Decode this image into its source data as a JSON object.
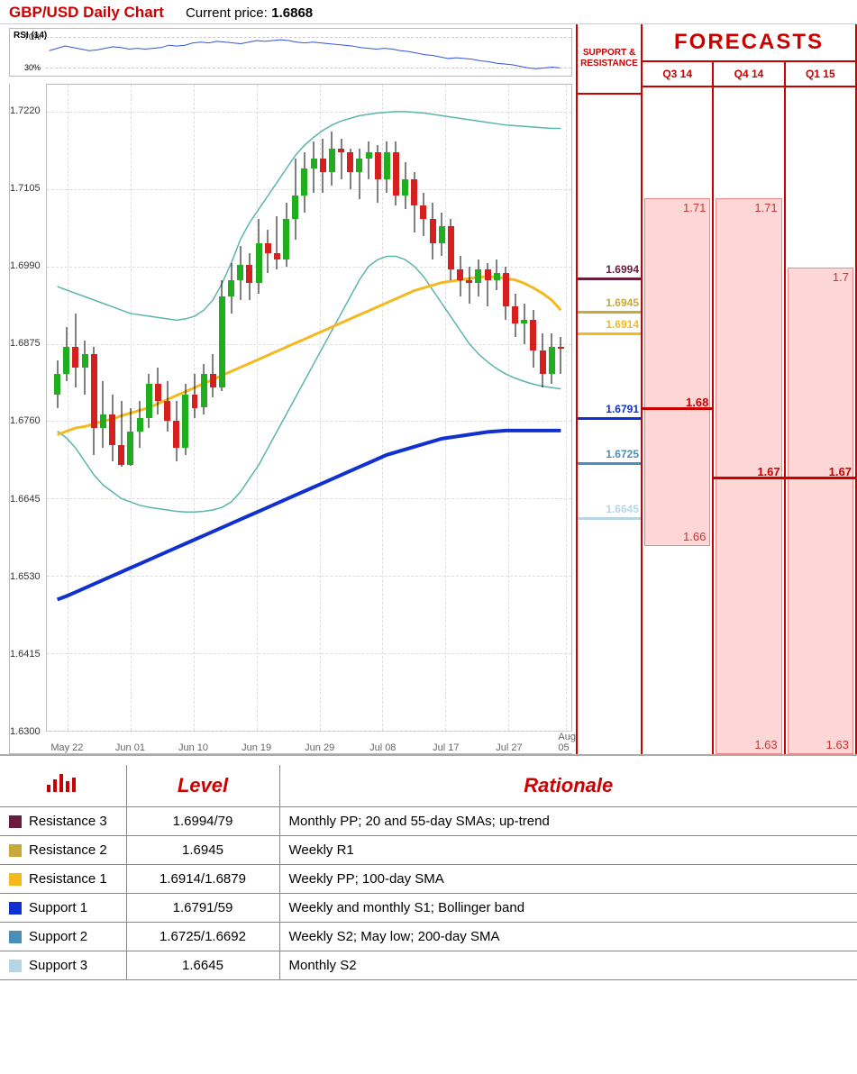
{
  "header": {
    "title": "GBP/USD Daily Chart",
    "price_label": "Current price:",
    "price_value": "1.6868"
  },
  "rsi": {
    "label": "RSI (14)",
    "bands": [
      70,
      30
    ],
    "ymin": 20,
    "ymax": 80,
    "line_color": "#3355dd",
    "values": [
      52,
      55,
      58,
      56,
      54,
      52,
      53,
      55,
      57,
      56,
      54,
      55,
      54,
      55,
      56,
      59,
      58,
      59,
      62,
      63,
      62,
      64,
      63,
      62,
      61,
      63,
      65,
      64,
      65,
      66,
      65,
      63,
      62,
      63,
      62,
      61,
      60,
      59,
      58,
      56,
      55,
      54,
      55,
      54,
      52,
      51,
      49,
      47,
      46,
      44,
      42,
      43,
      42,
      41,
      39,
      38,
      36,
      35,
      34,
      32,
      30,
      29,
      30,
      31,
      30
    ]
  },
  "chart": {
    "ymin": 1.63,
    "ymax": 1.726,
    "y_ticks": [
      1.63,
      1.6415,
      1.653,
      1.6645,
      1.676,
      1.6875,
      1.699,
      1.7105,
      1.722
    ],
    "x_labels": [
      "May 22",
      "Jun 01",
      "Jun 10",
      "Jun 19",
      "Jun 29",
      "Jul 08",
      "Jul 17",
      "Jul 27",
      "Aug 05"
    ],
    "x_positions": [
      0.04,
      0.16,
      0.28,
      0.4,
      0.52,
      0.64,
      0.76,
      0.88,
      0.99
    ],
    "grid_color": "#dddddd",
    "up_color": "#1eae1e",
    "down_color": "#d62020",
    "candles": [
      {
        "o": 1.68,
        "c": 1.683,
        "h": 1.685,
        "l": 1.678
      },
      {
        "o": 1.683,
        "c": 1.687,
        "h": 1.69,
        "l": 1.682
      },
      {
        "o": 1.687,
        "c": 1.684,
        "h": 1.692,
        "l": 1.681
      },
      {
        "o": 1.684,
        "c": 1.686,
        "h": 1.688,
        "l": 1.68
      },
      {
        "o": 1.686,
        "c": 1.675,
        "h": 1.687,
        "l": 1.671
      },
      {
        "o": 1.675,
        "c": 1.677,
        "h": 1.682,
        "l": 1.672
      },
      {
        "o": 1.677,
        "c": 1.6725,
        "h": 1.68,
        "l": 1.67
      },
      {
        "o": 1.6725,
        "c": 1.6695,
        "h": 1.679,
        "l": 1.6692
      },
      {
        "o": 1.6695,
        "c": 1.6745,
        "h": 1.678,
        "l": 1.6693
      },
      {
        "o": 1.6745,
        "c": 1.6765,
        "h": 1.679,
        "l": 1.672
      },
      {
        "o": 1.6765,
        "c": 1.6815,
        "h": 1.683,
        "l": 1.675
      },
      {
        "o": 1.6815,
        "c": 1.679,
        "h": 1.684,
        "l": 1.677
      },
      {
        "o": 1.679,
        "c": 1.676,
        "h": 1.682,
        "l": 1.6745
      },
      {
        "o": 1.676,
        "c": 1.672,
        "h": 1.679,
        "l": 1.67
      },
      {
        "o": 1.672,
        "c": 1.68,
        "h": 1.6815,
        "l": 1.671
      },
      {
        "o": 1.68,
        "c": 1.678,
        "h": 1.683,
        "l": 1.6765
      },
      {
        "o": 1.678,
        "c": 1.683,
        "h": 1.6845,
        "l": 1.677
      },
      {
        "o": 1.683,
        "c": 1.681,
        "h": 1.686,
        "l": 1.6795
      },
      {
        "o": 1.681,
        "c": 1.6945,
        "h": 1.697,
        "l": 1.6805
      },
      {
        "o": 1.6945,
        "c": 1.697,
        "h": 1.6995,
        "l": 1.692
      },
      {
        "o": 1.697,
        "c": 1.6992,
        "h": 1.702,
        "l": 1.694
      },
      {
        "o": 1.6992,
        "c": 1.6965,
        "h": 1.701,
        "l": 1.694
      },
      {
        "o": 1.6965,
        "c": 1.7025,
        "h": 1.706,
        "l": 1.695
      },
      {
        "o": 1.7025,
        "c": 1.701,
        "h": 1.7045,
        "l": 1.698
      },
      {
        "o": 1.701,
        "c": 1.7,
        "h": 1.7065,
        "l": 1.6985
      },
      {
        "o": 1.7,
        "c": 1.706,
        "h": 1.7085,
        "l": 1.699
      },
      {
        "o": 1.706,
        "c": 1.7095,
        "h": 1.715,
        "l": 1.703
      },
      {
        "o": 1.7095,
        "c": 1.7135,
        "h": 1.716,
        "l": 1.707
      },
      {
        "o": 1.7135,
        "c": 1.715,
        "h": 1.7175,
        "l": 1.71
      },
      {
        "o": 1.715,
        "c": 1.713,
        "h": 1.718,
        "l": 1.71
      },
      {
        "o": 1.713,
        "c": 1.7165,
        "h": 1.719,
        "l": 1.711
      },
      {
        "o": 1.7165,
        "c": 1.716,
        "h": 1.718,
        "l": 1.712
      },
      {
        "o": 1.716,
        "c": 1.713,
        "h": 1.7165,
        "l": 1.7105
      },
      {
        "o": 1.713,
        "c": 1.715,
        "h": 1.7165,
        "l": 1.709
      },
      {
        "o": 1.715,
        "c": 1.716,
        "h": 1.7175,
        "l": 1.712
      },
      {
        "o": 1.716,
        "c": 1.712,
        "h": 1.717,
        "l": 1.7085
      },
      {
        "o": 1.712,
        "c": 1.716,
        "h": 1.7175,
        "l": 1.71
      },
      {
        "o": 1.716,
        "c": 1.7095,
        "h": 1.7175,
        "l": 1.708
      },
      {
        "o": 1.7095,
        "c": 1.712,
        "h": 1.7145,
        "l": 1.7075
      },
      {
        "o": 1.712,
        "c": 1.708,
        "h": 1.713,
        "l": 1.704
      },
      {
        "o": 1.708,
        "c": 1.706,
        "h": 1.71,
        "l": 1.7035
      },
      {
        "o": 1.706,
        "c": 1.7025,
        "h": 1.7085,
        "l": 1.7
      },
      {
        "o": 1.7025,
        "c": 1.705,
        "h": 1.707,
        "l": 1.7005
      },
      {
        "o": 1.705,
        "c": 1.6985,
        "h": 1.706,
        "l": 1.697
      },
      {
        "o": 1.6985,
        "c": 1.697,
        "h": 1.7005,
        "l": 1.6945
      },
      {
        "o": 1.697,
        "c": 1.6965,
        "h": 1.699,
        "l": 1.6935
      },
      {
        "o": 1.6965,
        "c": 1.6985,
        "h": 1.7,
        "l": 1.6945
      },
      {
        "o": 1.6985,
        "c": 1.697,
        "h": 1.6995,
        "l": 1.693
      },
      {
        "o": 1.697,
        "c": 1.698,
        "h": 1.7,
        "l": 1.6955
      },
      {
        "o": 1.698,
        "c": 1.693,
        "h": 1.699,
        "l": 1.691
      },
      {
        "o": 1.693,
        "c": 1.6905,
        "h": 1.695,
        "l": 1.6885
      },
      {
        "o": 1.6905,
        "c": 1.691,
        "h": 1.6935,
        "l": 1.6875
      },
      {
        "o": 1.691,
        "c": 1.6865,
        "h": 1.6925,
        "l": 1.684
      },
      {
        "o": 1.6865,
        "c": 1.683,
        "h": 1.689,
        "l": 1.681
      },
      {
        "o": 1.683,
        "c": 1.687,
        "h": 1.689,
        "l": 1.6815
      },
      {
        "o": 1.687,
        "c": 1.6868,
        "h": 1.6885,
        "l": 1.683
      }
    ],
    "sma100": {
      "color": "#f5b920",
      "width": 3,
      "points": [
        1.674,
        1.6745,
        1.675,
        1.6752,
        1.6756,
        1.676,
        1.6763,
        1.6768,
        1.6772,
        1.6776,
        1.678,
        1.6786,
        1.6792,
        1.6798,
        1.6804,
        1.681,
        1.6816,
        1.6822,
        1.6828,
        1.6834,
        1.684,
        1.6846,
        1.6852,
        1.6858,
        1.6864,
        1.687,
        1.6876,
        1.6882,
        1.6888,
        1.6894,
        1.69,
        1.6906,
        1.6912,
        1.6918,
        1.6924,
        1.693,
        1.6936,
        1.6942,
        1.6948,
        1.6954,
        1.6958,
        1.6962,
        1.6966,
        1.6968,
        1.697,
        1.6972,
        1.6974,
        1.6975,
        1.6974,
        1.6972,
        1.697,
        1.6965,
        1.6958,
        1.695,
        1.694,
        1.6925
      ]
    },
    "sma200": {
      "color": "#1030d0",
      "width": 4,
      "points": [
        1.6495,
        1.65,
        1.6506,
        1.6512,
        1.6518,
        1.6524,
        1.653,
        1.6536,
        1.6542,
        1.6548,
        1.6554,
        1.656,
        1.6566,
        1.6572,
        1.6578,
        1.6584,
        1.659,
        1.6596,
        1.6602,
        1.6608,
        1.6614,
        1.662,
        1.6626,
        1.6632,
        1.6638,
        1.6644,
        1.665,
        1.6656,
        1.6662,
        1.6668,
        1.6674,
        1.668,
        1.6686,
        1.6692,
        1.6698,
        1.6704,
        1.671,
        1.6714,
        1.6718,
        1.6722,
        1.6726,
        1.673,
        1.6734,
        1.6736,
        1.6738,
        1.674,
        1.6742,
        1.6744,
        1.6745,
        1.6746,
        1.6746,
        1.6746,
        1.6746,
        1.6746,
        1.6746,
        1.6746
      ]
    },
    "bb_upper": {
      "color": "#5bb5aa",
      "width": 1.5,
      "points": [
        1.696,
        1.6955,
        1.695,
        1.6945,
        1.694,
        1.6935,
        1.693,
        1.6925,
        1.692,
        1.6918,
        1.6916,
        1.6914,
        1.6912,
        1.691,
        1.6912,
        1.6916,
        1.6925,
        1.694,
        1.6965,
        1.6995,
        1.703,
        1.7055,
        1.7075,
        1.7095,
        1.7115,
        1.7135,
        1.7155,
        1.717,
        1.7182,
        1.7192,
        1.72,
        1.7206,
        1.721,
        1.7214,
        1.7216,
        1.7218,
        1.7219,
        1.722,
        1.722,
        1.7219,
        1.7218,
        1.7216,
        1.7214,
        1.7212,
        1.721,
        1.7208,
        1.7206,
        1.7204,
        1.7202,
        1.72,
        1.7199,
        1.7198,
        1.7197,
        1.7196,
        1.7195,
        1.7195
      ]
    },
    "bb_lower": {
      "color": "#5bb5aa",
      "width": 1.5,
      "points": [
        1.6745,
        1.6735,
        1.672,
        1.67,
        1.668,
        1.6665,
        1.6655,
        1.6645,
        1.664,
        1.6635,
        1.6632,
        1.663,
        1.6628,
        1.6626,
        1.6625,
        1.6625,
        1.6626,
        1.6628,
        1.6632,
        1.664,
        1.6655,
        1.6675,
        1.6695,
        1.672,
        1.6745,
        1.677,
        1.6795,
        1.682,
        1.6845,
        1.687,
        1.6895,
        1.692,
        1.6945,
        1.697,
        1.699,
        1.7,
        1.7005,
        1.7005,
        1.7,
        1.699,
        1.6975,
        1.6955,
        1.6935,
        1.6915,
        1.6895,
        1.6875,
        1.686,
        1.6848,
        1.6838,
        1.683,
        1.6824,
        1.6819,
        1.6815,
        1.6812,
        1.681,
        1.6808
      ]
    }
  },
  "sr": {
    "header": "SUPPORT & RESISTANCE",
    "levels": [
      {
        "value": 1.6994,
        "label": "1.6994",
        "color": "#6b1b3e"
      },
      {
        "value": 1.6945,
        "label": "1.6945",
        "color": "#c9a83a"
      },
      {
        "value": 1.6914,
        "label": "1.6914",
        "color": "#f5b920"
      },
      {
        "value": 1.6791,
        "label": "1.6791",
        "color": "#1030d0"
      },
      {
        "value": 1.6725,
        "label": "1.6725",
        "color": "#4a8fb8"
      },
      {
        "value": 1.6645,
        "label": "1.6645",
        "color": "#b8d5e8"
      }
    ]
  },
  "forecasts": {
    "title": "FORECASTS",
    "periods": [
      "Q3 14",
      "Q4 14",
      "Q1 15"
    ],
    "ranges": [
      {
        "high": 1.71,
        "mid": 1.68,
        "low": 1.66,
        "high_lbl": "1.71",
        "mid_lbl": "1.68",
        "low_lbl": "1.66"
      },
      {
        "high": 1.71,
        "mid": 1.67,
        "low": 1.63,
        "high_lbl": "1.71",
        "mid_lbl": "1.67",
        "low_lbl": "1.63"
      },
      {
        "high": 1.7,
        "mid": 1.67,
        "low": 1.63,
        "high_lbl": "1.7",
        "mid_lbl": "1.67",
        "low_lbl": "1.63"
      }
    ]
  },
  "table": {
    "headers": [
      "",
      "Level",
      "Rationale"
    ],
    "rows": [
      {
        "swatch": "#6b1b3e",
        "name": "Resistance 3",
        "level": "1.6994/79",
        "rationale": "Monthly PP; 20 and 55-day SMAs; up-trend"
      },
      {
        "swatch": "#c9a83a",
        "name": "Resistance 2",
        "level": "1.6945",
        "rationale": "Weekly R1"
      },
      {
        "swatch": "#f5b920",
        "name": "Resistance 1",
        "level": "1.6914/1.6879",
        "rationale": "Weekly PP; 100-day SMA"
      },
      {
        "swatch": "#1030d0",
        "name": "Support 1",
        "level": "1.6791/59",
        "rationale": "Weekly and monthly S1; Bollinger band"
      },
      {
        "swatch": "#4a8fb8",
        "name": "Support 2",
        "level": "1.6725/1.6692",
        "rationale": "Weekly S2; May low; 200-day SMA"
      },
      {
        "swatch": "#b8d5e8",
        "name": "Support 3",
        "level": "1.6645",
        "rationale": "Monthly S2"
      }
    ]
  },
  "colors": {
    "accent": "#c00"
  }
}
